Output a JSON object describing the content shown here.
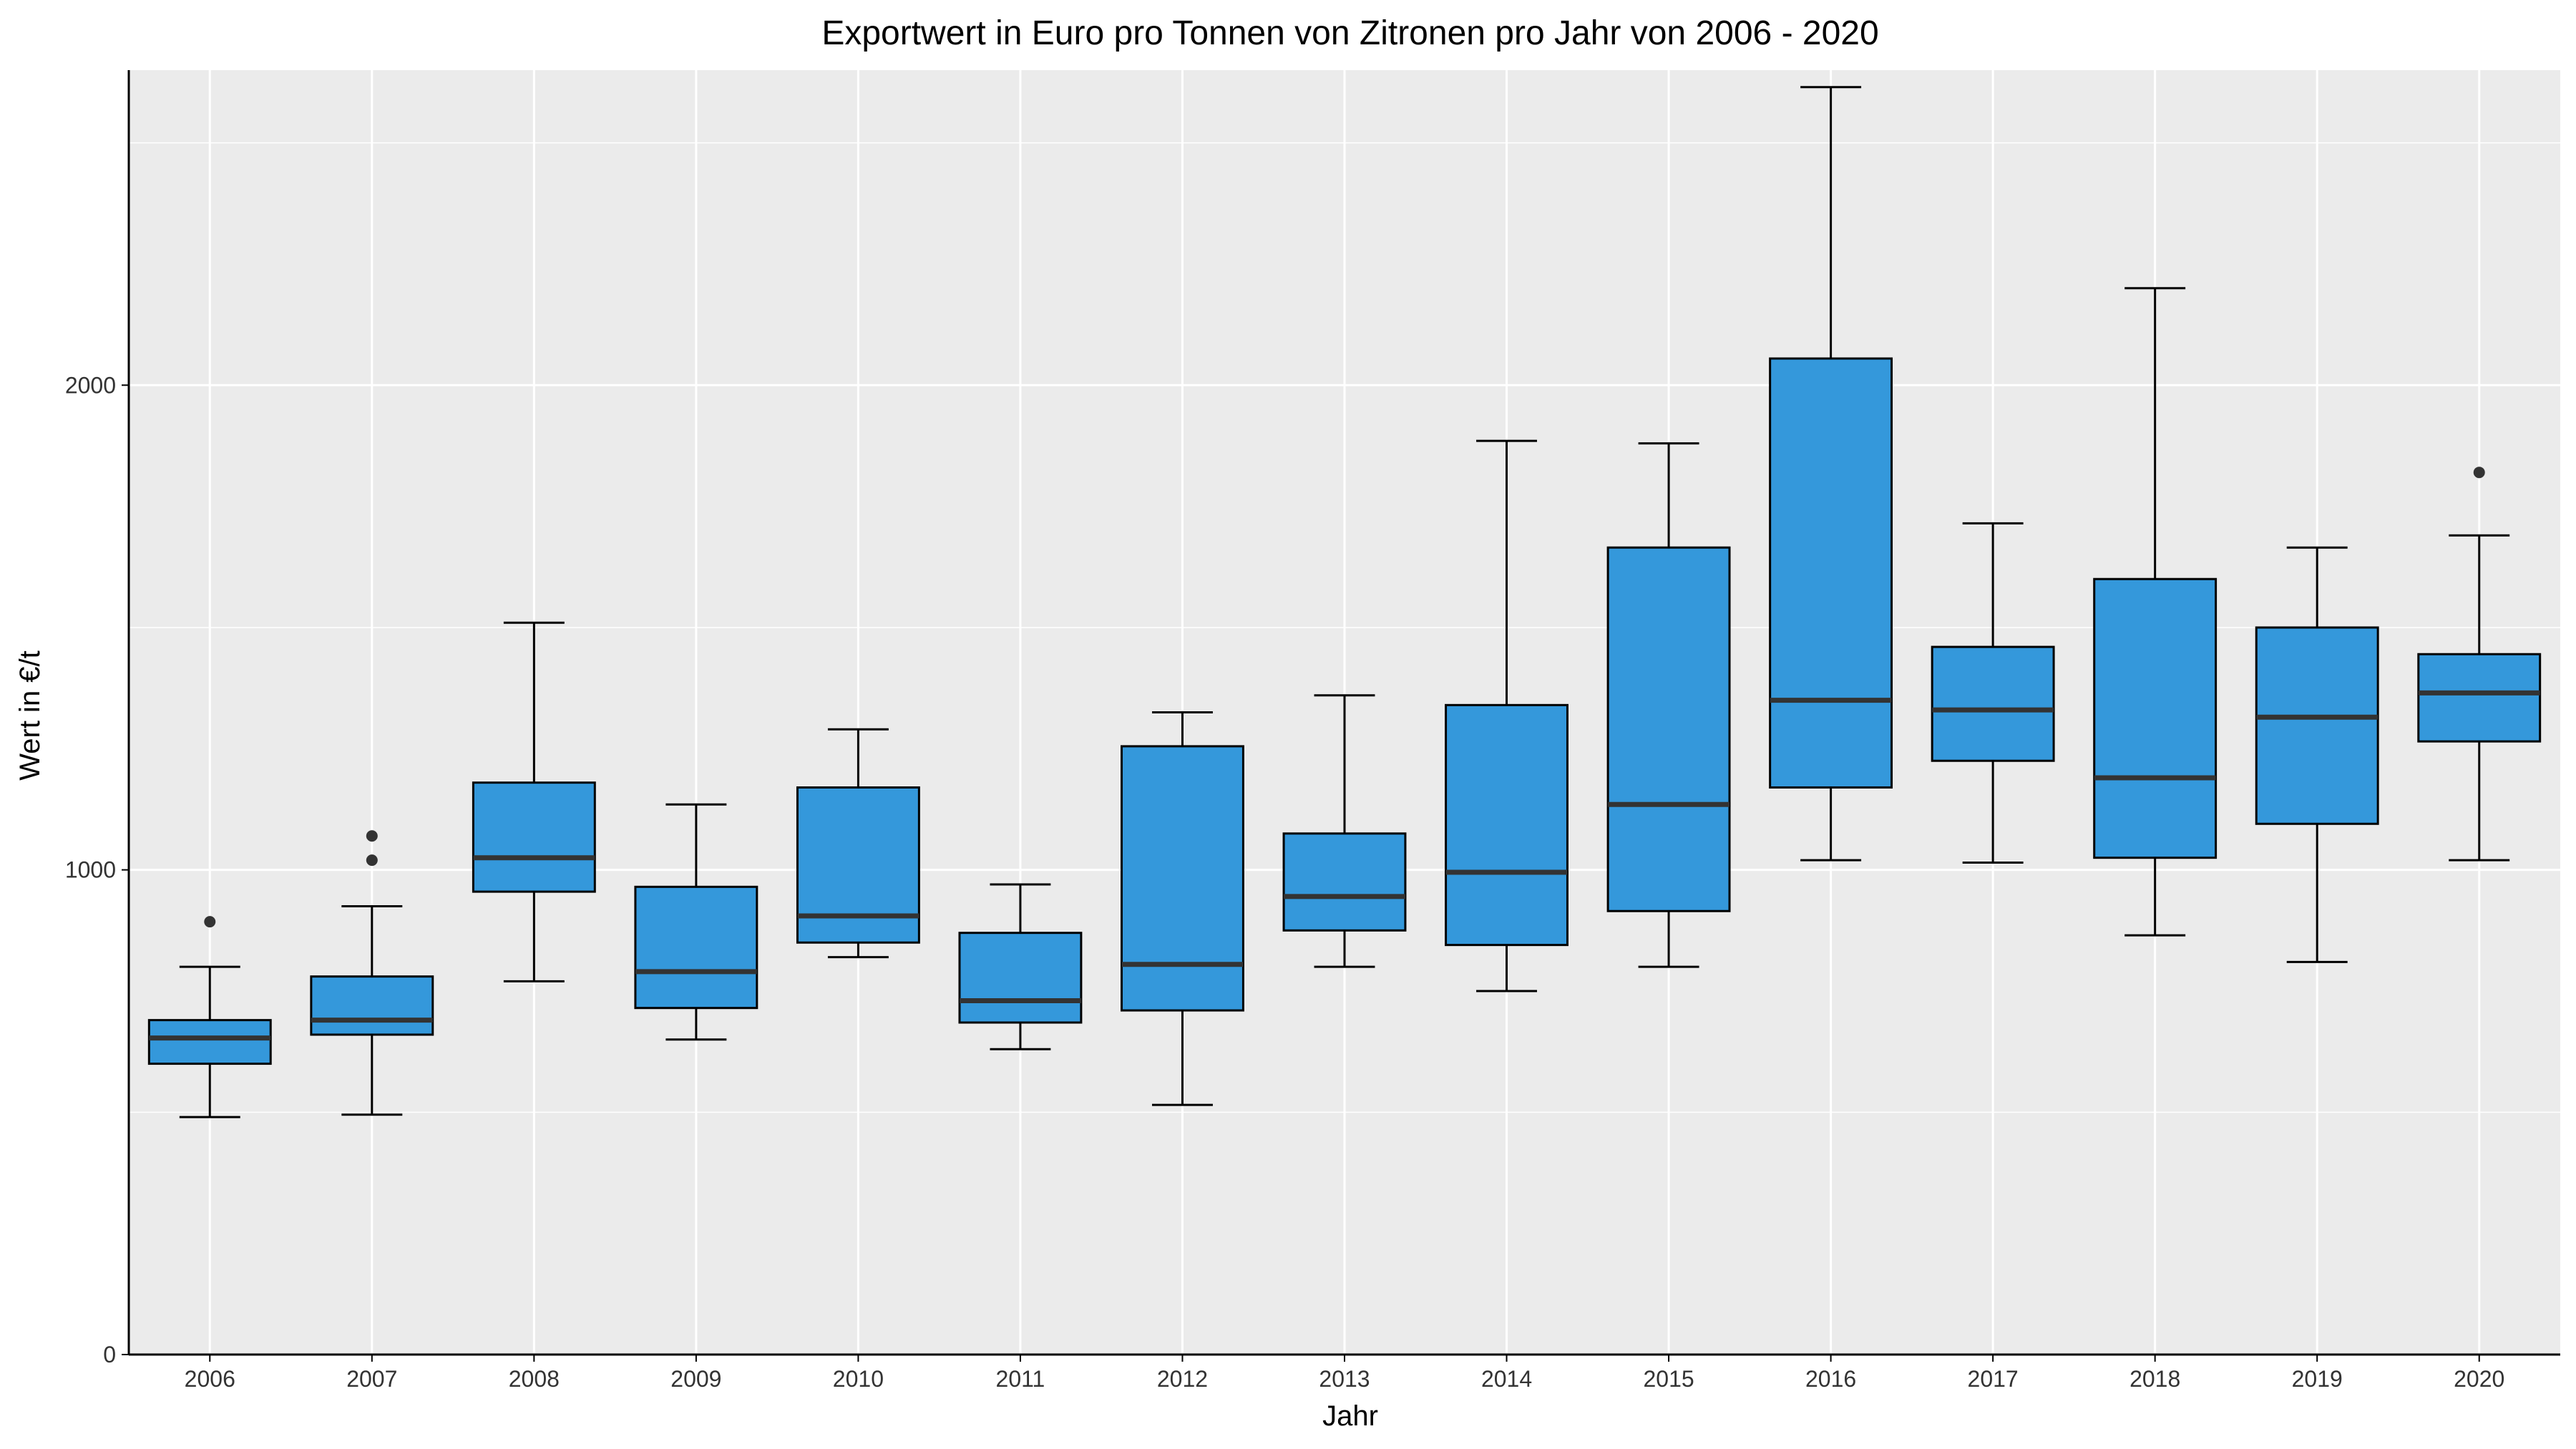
{
  "chart_data": {
    "type": "boxplot",
    "title": "Exportwert in Euro pro Tonnen von Zitronen pro Jahr von 2006 - 2020",
    "xlabel": "Jahr",
    "ylabel": "Wert in €/t",
    "ylim": [
      0,
      2650
    ],
    "yticks": [
      0,
      1000,
      2000
    ],
    "grid": true,
    "legend": "none",
    "colors": {
      "box_fill": "#3498DB",
      "panel": "#EBEBEB",
      "grid": "#FFFFFF",
      "line": "#000000",
      "median": "#333333",
      "outlier": "#333333"
    },
    "categories": [
      "2006",
      "2007",
      "2008",
      "2009",
      "2010",
      "2011",
      "2012",
      "2013",
      "2014",
      "2015",
      "2016",
      "2017",
      "2018",
      "2019",
      "2020"
    ],
    "boxes": [
      {
        "x": "2006",
        "whisker_low": 490,
        "q1": 600,
        "median": 653,
        "q3": 690,
        "whisker_high": 800,
        "outliers": [
          893
        ]
      },
      {
        "x": "2007",
        "whisker_low": 495,
        "q1": 660,
        "median": 690,
        "q3": 780,
        "whisker_high": 925,
        "outliers": [
          1020,
          1070
        ]
      },
      {
        "x": "2008",
        "whisker_low": 770,
        "q1": 955,
        "median": 1025,
        "q3": 1180,
        "whisker_high": 1510,
        "outliers": []
      },
      {
        "x": "2009",
        "whisker_low": 650,
        "q1": 715,
        "median": 790,
        "q3": 965,
        "whisker_high": 1135,
        "outliers": []
      },
      {
        "x": "2010",
        "whisker_low": 820,
        "q1": 850,
        "median": 905,
        "q3": 1170,
        "whisker_high": 1290,
        "outliers": []
      },
      {
        "x": "2011",
        "whisker_low": 630,
        "q1": 685,
        "median": 730,
        "q3": 870,
        "whisker_high": 970,
        "outliers": []
      },
      {
        "x": "2012",
        "whisker_low": 515,
        "q1": 710,
        "median": 805,
        "q3": 1255,
        "whisker_high": 1325,
        "outliers": []
      },
      {
        "x": "2013",
        "whisker_low": 800,
        "q1": 875,
        "median": 945,
        "q3": 1075,
        "whisker_high": 1360,
        "outliers": []
      },
      {
        "x": "2014",
        "whisker_low": 750,
        "q1": 845,
        "median": 995,
        "q3": 1340,
        "whisker_high": 1885,
        "outliers": []
      },
      {
        "x": "2015",
        "whisker_low": 800,
        "q1": 915,
        "median": 1135,
        "q3": 1665,
        "whisker_high": 1880,
        "outliers": []
      },
      {
        "x": "2016",
        "whisker_low": 1020,
        "q1": 1170,
        "median": 1350,
        "q3": 2055,
        "whisker_high": 2615,
        "outliers": []
      },
      {
        "x": "2017",
        "whisker_low": 1015,
        "q1": 1225,
        "median": 1330,
        "q3": 1460,
        "whisker_high": 1715,
        "outliers": []
      },
      {
        "x": "2018",
        "whisker_low": 865,
        "q1": 1025,
        "median": 1190,
        "q3": 1600,
        "whisker_high": 2200,
        "outliers": []
      },
      {
        "x": "2019",
        "whisker_low": 810,
        "q1": 1095,
        "median": 1315,
        "q3": 1500,
        "whisker_high": 1665,
        "outliers": []
      },
      {
        "x": "2020",
        "whisker_low": 1020,
        "q1": 1265,
        "median": 1365,
        "q3": 1445,
        "whisker_high": 1690,
        "outliers": [
          1820
        ]
      }
    ]
  }
}
